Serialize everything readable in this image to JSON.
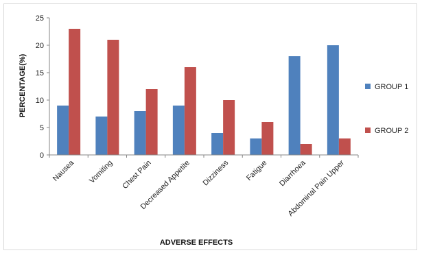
{
  "chart_data": {
    "type": "bar",
    "title": "",
    "xlabel": "ADVERSE EFFECTS",
    "ylabel": "PERCENTAGE(%)",
    "ylim": [
      0,
      25
    ],
    "yticks": [
      0,
      5,
      10,
      15,
      20,
      25
    ],
    "grid": false,
    "legend_position": "right",
    "categories": [
      "Nausea",
      "Vomiting",
      "Chest Pain",
      "Decreased Appetite",
      "Dizziness",
      "Fatigue",
      "Diarrhoea",
      "Abdominal Pain Upper"
    ],
    "series": [
      {
        "name": "GROUP 1",
        "color": "#4f81bd",
        "values": [
          9,
          7,
          8,
          9,
          4,
          3,
          18,
          20
        ]
      },
      {
        "name": "GROUP 2",
        "color": "#c0504d",
        "values": [
          23,
          21,
          12,
          16,
          10,
          6,
          2,
          3
        ]
      }
    ]
  }
}
